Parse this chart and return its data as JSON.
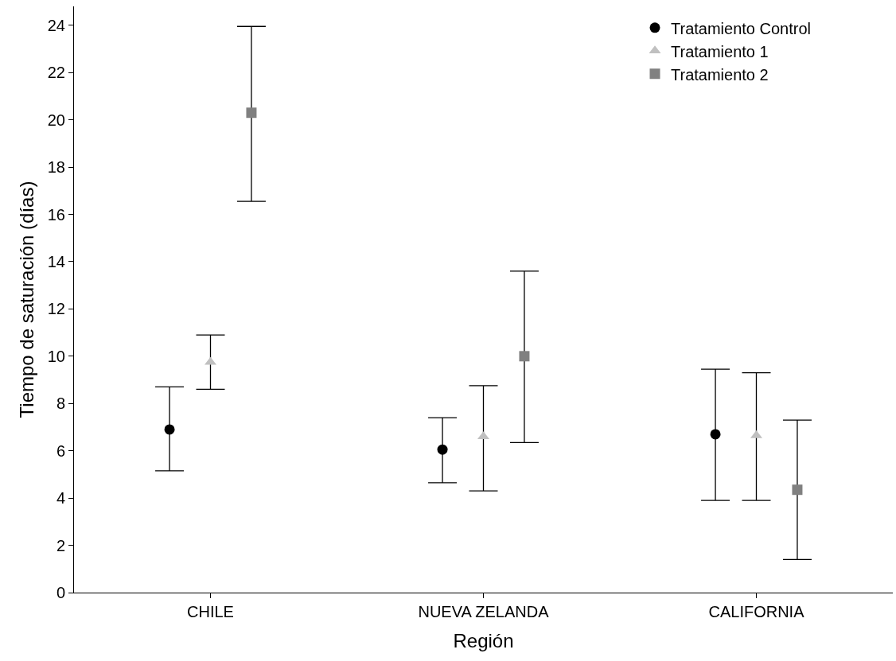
{
  "chart_data": {
    "type": "scatter",
    "xlabel": "Región",
    "ylabel": "Tiempo de saturación (días)",
    "categories": [
      "CHILE",
      "NUEVA ZELANDA",
      "CALIFORNIA"
    ],
    "ylim": [
      0,
      24.8
    ],
    "yticks": [
      0,
      2,
      4,
      6,
      8,
      10,
      12,
      14,
      16,
      18,
      20,
      22,
      24
    ],
    "grid": false,
    "legend": "top right",
    "series": [
      {
        "name": "Tratamiento Control",
        "color": "#000000",
        "marker": "circle",
        "values": [
          6.9,
          6.05,
          6.7
        ],
        "errors": [
          [
            5.15,
            8.7
          ],
          [
            4.65,
            7.4
          ],
          [
            3.9,
            9.45
          ]
        ]
      },
      {
        "name": "Tratamiento 1",
        "color": "#c0c0c0",
        "marker": "triangle",
        "values": [
          9.75,
          6.6,
          6.65
        ],
        "errors": [
          [
            8.6,
            10.9
          ],
          [
            4.3,
            8.75
          ],
          [
            3.9,
            9.3
          ]
        ]
      },
      {
        "name": "Tratamiento 2",
        "color": "#808080",
        "marker": "square",
        "values": [
          20.3,
          10.0,
          4.35
        ],
        "errors": [
          [
            16.55,
            23.95
          ],
          [
            6.35,
            13.6
          ],
          [
            1.4,
            7.3
          ]
        ]
      }
    ]
  }
}
